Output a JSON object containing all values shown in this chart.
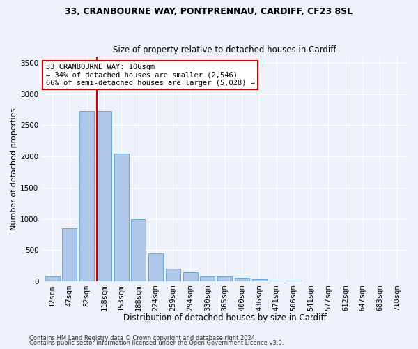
{
  "title": "33, CRANBOURNE WAY, PONTPRENNAU, CARDIFF, CF23 8SL",
  "subtitle": "Size of property relative to detached houses in Cardiff",
  "xlabel": "Distribution of detached houses by size in Cardiff",
  "ylabel": "Number of detached properties",
  "footer1": "Contains HM Land Registry data © Crown copyright and database right 2024.",
  "footer2": "Contains public sector information licensed under the Open Government Licence v3.0.",
  "categories": [
    "12sqm",
    "47sqm",
    "82sqm",
    "118sqm",
    "153sqm",
    "188sqm",
    "224sqm",
    "259sqm",
    "294sqm",
    "330sqm",
    "365sqm",
    "400sqm",
    "436sqm",
    "471sqm",
    "506sqm",
    "541sqm",
    "577sqm",
    "612sqm",
    "647sqm",
    "683sqm",
    "718sqm"
  ],
  "values": [
    75,
    850,
    2730,
    2730,
    2050,
    1000,
    450,
    200,
    140,
    80,
    80,
    60,
    30,
    15,
    10,
    5,
    4,
    2,
    1,
    1,
    1
  ],
  "bar_color": "#aec6e8",
  "bar_edge_color": "#5a9fd4",
  "vline_x": 2.57,
  "vline_color": "#cc0000",
  "annotation_line1": "33 CRANBOURNE WAY: 106sqm",
  "annotation_line2": "← 34% of detached houses are smaller (2,546)",
  "annotation_line3": "66% of semi-detached houses are larger (5,028) →",
  "annotation_box_color": "#ffffff",
  "annotation_box_edge_color": "#cc0000",
  "annotation_fontsize": 7.5,
  "ylim": [
    0,
    3600
  ],
  "yticks": [
    0,
    500,
    1000,
    1500,
    2000,
    2500,
    3000,
    3500
  ],
  "title_fontsize": 9,
  "subtitle_fontsize": 8.5,
  "xlabel_fontsize": 8.5,
  "ylabel_fontsize": 8,
  "tick_fontsize": 7.5,
  "footer_fontsize": 6,
  "background_color": "#edf2fa",
  "plot_background_color": "#edf2fa"
}
